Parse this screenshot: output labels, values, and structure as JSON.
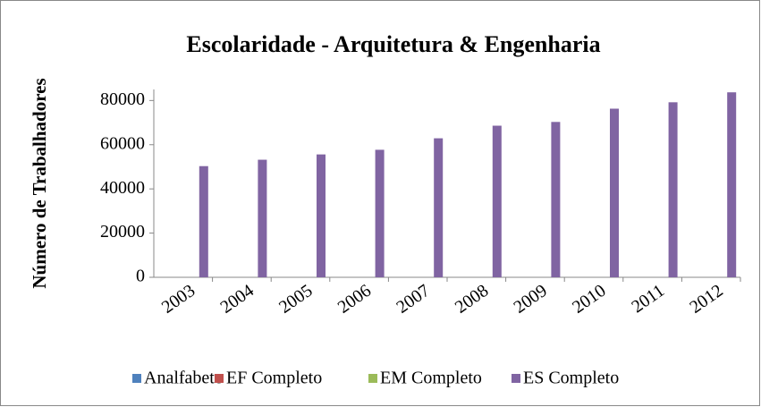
{
  "chart_data": {
    "type": "bar",
    "title": "Escolaridade - Arquitetura & Engenharia",
    "y_label": "Número de Trabalhadores",
    "categories": [
      "2003",
      "2004",
      "2005",
      "2006",
      "2007",
      "2008",
      "2009",
      "2010",
      "2011",
      "2012"
    ],
    "series": [
      {
        "name": "Analfabeto",
        "color": "#4f81bd",
        "values": [
          0,
          0,
          0,
          0,
          0,
          0,
          0,
          0,
          0,
          0
        ]
      },
      {
        "name": "EF Completo",
        "color": "#c0504d",
        "values": [
          0,
          0,
          0,
          0,
          0,
          0,
          0,
          0,
          0,
          0
        ]
      },
      {
        "name": "EM Completo",
        "color": "#9bbb59",
        "values": [
          0,
          0,
          0,
          0,
          0,
          0,
          0,
          0,
          0,
          0
        ]
      },
      {
        "name": "ES Completo",
        "color": "#8064a2",
        "values": [
          50300,
          53200,
          55600,
          57700,
          62900,
          68600,
          70300,
          76300,
          79200,
          83700
        ]
      }
    ],
    "ylim": [
      0,
      85000
    ],
    "yticks": [
      0,
      20000,
      40000,
      60000,
      80000
    ],
    "grid": false,
    "legend": "bottom"
  }
}
